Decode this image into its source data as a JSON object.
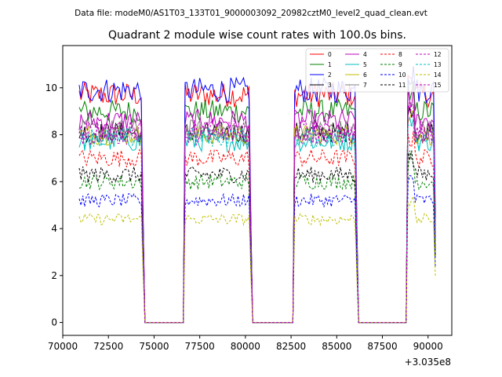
{
  "chart_data": {
    "type": "line",
    "suptitle": "Data file: modeM0/AS1T03_133T01_9000003092_20982cztM0_level2_quad_clean.evt",
    "title": "Quadrant 2 module wise count rates with 100.0s bins.",
    "xlabel": "",
    "ylabel": "",
    "x_offset_label": "+3.035e8",
    "xlim": [
      70000,
      91300
    ],
    "ylim": [
      -0.55,
      11.8
    ],
    "x_ticks": [
      70000,
      72500,
      75000,
      77500,
      80000,
      82500,
      85000,
      87500,
      90000
    ],
    "x_tick_labels": [
      "70000",
      "72500",
      "75000",
      "77500",
      "80000",
      "82500",
      "85000",
      "87500",
      "90000"
    ],
    "y_ticks": [
      0,
      2,
      4,
      6,
      8,
      10
    ],
    "y_tick_labels": [
      "0",
      "2",
      "4",
      "6",
      "8",
      "10"
    ],
    "bin_seconds": 100,
    "segments": [
      {
        "start": 70900,
        "end": 74400,
        "gap_end": 76700
      },
      {
        "start": 76700,
        "end": 80300,
        "gap_end": 82700
      },
      {
        "start": 82700,
        "end": 86100,
        "gap_end": 88900
      },
      {
        "start": 88900,
        "end": 90400,
        "gap_end": null
      }
    ],
    "series": [
      {
        "name": "0",
        "color": "#ff0000",
        "dash": "solid",
        "mean_rate": 9.7
      },
      {
        "name": "1",
        "color": "#008000",
        "dash": "solid",
        "mean_rate": 9.0
      },
      {
        "name": "2",
        "color": "#0000ff",
        "dash": "solid",
        "mean_rate": 9.9
      },
      {
        "name": "3",
        "color": "#000000",
        "dash": "solid",
        "mean_rate": 8.1
      },
      {
        "name": "4",
        "color": "#bf00bf",
        "dash": "solid",
        "mean_rate": 8.6
      },
      {
        "name": "5",
        "color": "#00bfbf",
        "dash": "solid",
        "mean_rate": 7.7
      },
      {
        "name": "6",
        "color": "#bfbf00",
        "dash": "solid",
        "mean_rate": 8.0
      },
      {
        "name": "7",
        "color": "#808080",
        "dash": "solid",
        "mean_rate": 8.2
      },
      {
        "name": "8",
        "color": "#ff0000",
        "dash": "dashed",
        "mean_rate": 7.0
      },
      {
        "name": "9",
        "color": "#008000",
        "dash": "dashed",
        "mean_rate": 6.0
      },
      {
        "name": "10",
        "color": "#0000ff",
        "dash": "dashed",
        "mean_rate": 5.2
      },
      {
        "name": "11",
        "color": "#000000",
        "dash": "dashed",
        "mean_rate": 6.3
      },
      {
        "name": "12",
        "color": "#bf00bf",
        "dash": "dashed",
        "mean_rate": 8.2
      },
      {
        "name": "13",
        "color": "#00bfbf",
        "dash": "dashed",
        "mean_rate": 7.9
      },
      {
        "name": "14",
        "color": "#bfbf00",
        "dash": "dashed",
        "mean_rate": 4.4
      },
      {
        "name": "15",
        "color": "#bf00bf",
        "dash": "dashed",
        "mean_rate": 8.0
      }
    ],
    "legend_position": "top-right",
    "legend_columns": 4
  }
}
